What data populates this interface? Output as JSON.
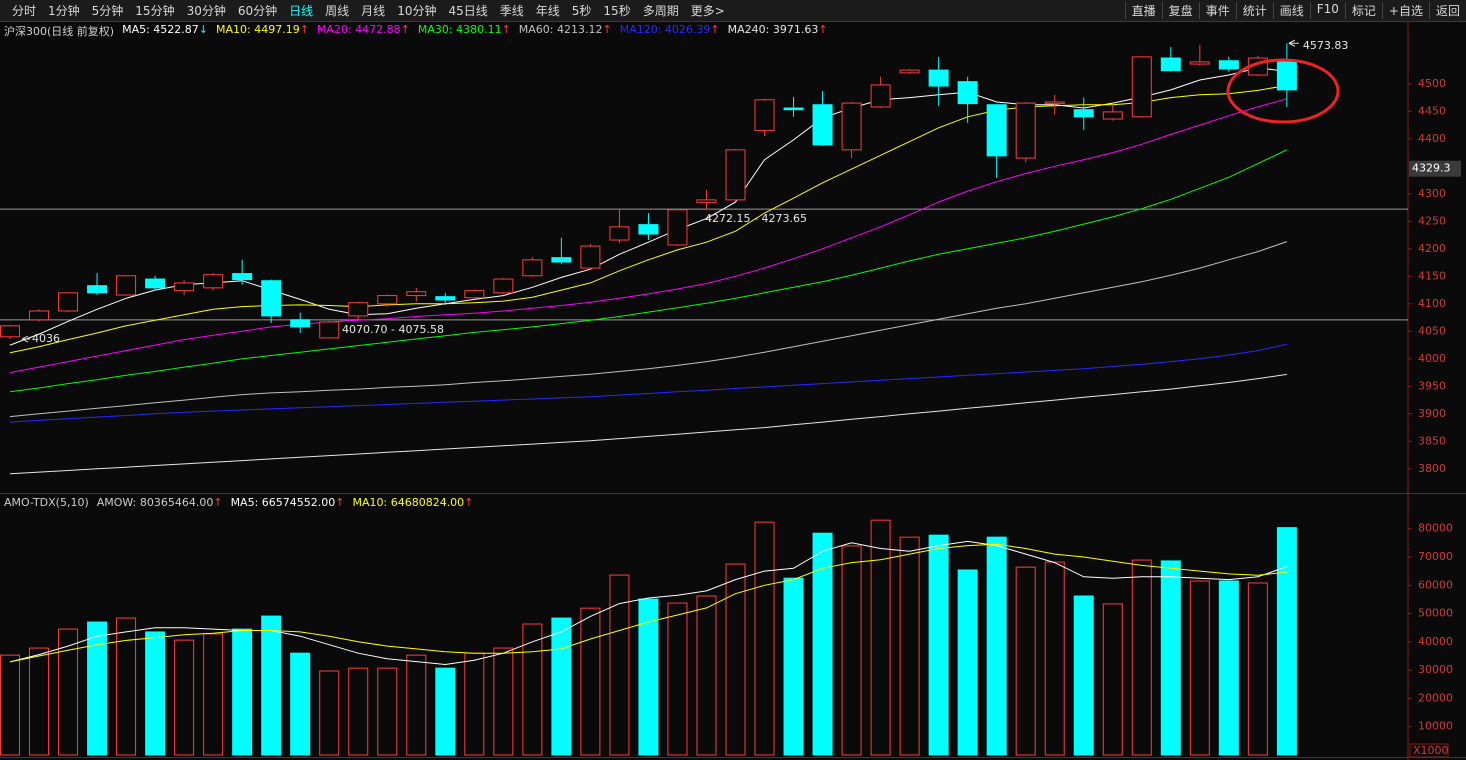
{
  "toolbar": {
    "left": [
      "分时",
      "1分钟",
      "5分钟",
      "15分钟",
      "30分钟",
      "60分钟",
      "日线",
      "周线",
      "月线",
      "10分钟",
      "45日线",
      "季线",
      "年线",
      "5秒",
      "15秒",
      "多周期",
      "更多>"
    ],
    "selected": "日线",
    "right": [
      "直播",
      "复盘",
      "事件",
      "统计",
      "画线",
      "F10",
      "标记",
      "+自选",
      "返回"
    ]
  },
  "chart_data": [
    {
      "type": "candlestick",
      "title": "沪深300(日线 前复权)",
      "up_color": "#ff3c3c",
      "down_color": "#00ffff",
      "open": [
        4040,
        4071,
        4087,
        4133,
        4116,
        4145,
        4124,
        4129,
        4155,
        4142,
        4071,
        4038,
        4078,
        4100,
        4115,
        4113,
        4111,
        4120,
        4151,
        4184,
        4165,
        4216,
        4244,
        4207,
        4284,
        4289,
        4415,
        4456,
        4462,
        4380,
        4458,
        4520,
        4525,
        4504,
        4462,
        4365,
        4464,
        4453,
        4436,
        4440,
        4547,
        4536,
        4542,
        4516,
        4540
      ],
      "high": [
        4062,
        4090,
        4121,
        4156,
        4152,
        4151,
        4143,
        4156,
        4180,
        4144,
        4084,
        4069,
        4104,
        4117,
        4129,
        4120,
        4126,
        4147,
        4185,
        4220,
        4209,
        4271,
        4265,
        4273,
        4307,
        4381,
        4473,
        4476,
        4487,
        4467,
        4513,
        4527,
        4549,
        4513,
        4463,
        4467,
        4480,
        4475,
        4462,
        4551,
        4567,
        4571,
        4549,
        4551,
        4573.83
      ],
      "low": [
        4036,
        4068,
        4085,
        4116,
        4115,
        4124,
        4116,
        4124,
        4135,
        4065,
        4047,
        4037.94,
        4071,
        4095,
        4104,
        4098,
        4109,
        4118,
        4149,
        4173,
        4162,
        4210,
        4216,
        4205,
        4271,
        4287,
        4405,
        4440,
        4387,
        4365,
        4456,
        4518,
        4460,
        4429,
        4329,
        4357,
        4444,
        4416,
        4433,
        4438,
        4522,
        4533,
        4522,
        4514,
        4458
      ],
      "close": [
        4060,
        4087,
        4120,
        4120,
        4151,
        4129,
        4138,
        4153,
        4144,
        4078,
        4058,
        4067,
        4102,
        4115,
        4122,
        4107,
        4124,
        4145,
        4180,
        4176,
        4205,
        4240,
        4227,
        4271,
        4289,
        4380,
        4471,
        4453,
        4389,
        4465,
        4498,
        4525,
        4496,
        4464,
        4369,
        4465,
        4467,
        4440,
        4449,
        4549,
        4524,
        4540,
        4527,
        4547,
        4489
      ],
      "series": [
        {
          "name": "MA5: 4522.87",
          "arrow": "↓",
          "color": "#ffffff",
          "values": [
            4025,
            4045,
            4068,
            4090,
            4110,
            4125,
            4135,
            4138,
            4142,
            4125,
            4108,
            4090,
            4080,
            4082,
            4092,
            4100,
            4108,
            4115,
            4130,
            4148,
            4163,
            4190,
            4212,
            4235,
            4255,
            4285,
            4362,
            4398,
            4438,
            4456,
            4471,
            4475,
            4480,
            4485,
            4467,
            4462,
            4462,
            4456,
            4465,
            4476,
            4489,
            4507,
            4516,
            4529,
            4522.87
          ]
        },
        {
          "name": "MA10: 4497.19",
          "arrow": "↑",
          "color": "#ffff00",
          "values": [
            4011,
            4022,
            4035,
            4047,
            4060,
            4070,
            4080,
            4090,
            4095,
            4097,
            4098,
            4097,
            4095,
            4098,
            4100,
            4100,
            4102,
            4105,
            4112,
            4125,
            4138,
            4160,
            4180,
            4198,
            4212,
            4232,
            4265,
            4292,
            4320,
            4345,
            4370,
            4395,
            4420,
            4440,
            4452,
            4458,
            4460,
            4462,
            4462,
            4466,
            4475,
            4480,
            4482,
            4488,
            4497.19
          ]
        },
        {
          "name": "MA20: 4472.88",
          "arrow": "↑",
          "color": "#ff00ff",
          "values": [
            3975,
            3985,
            3995,
            4005,
            4015,
            4025,
            4035,
            4043,
            4050,
            4058,
            4063,
            4067,
            4070,
            4073,
            4077,
            4080,
            4083,
            4087,
            4092,
            4097,
            4103,
            4110,
            4118,
            4127,
            4137,
            4150,
            4165,
            4182,
            4200,
            4220,
            4240,
            4262,
            4285,
            4305,
            4322,
            4337,
            4350,
            4362,
            4375,
            4390,
            4408,
            4425,
            4442,
            4458,
            4472.88
          ]
        },
        {
          "name": "MA30: 4380.11",
          "arrow": "↑",
          "color": "#00ff00",
          "values": [
            3940,
            3947,
            3955,
            3962,
            3970,
            3977,
            3985,
            3992,
            4000,
            4006,
            4012,
            4018,
            4024,
            4030,
            4036,
            4042,
            4048,
            4053,
            4058,
            4064,
            4070,
            4077,
            4085,
            4093,
            4101,
            4110,
            4120,
            4130,
            4140,
            4152,
            4165,
            4178,
            4190,
            4200,
            4210,
            4220,
            4232,
            4245,
            4258,
            4273,
            4290,
            4310,
            4330,
            4355,
            4380.11
          ]
        },
        {
          "name": "MA60: 4213.12",
          "arrow": "↑",
          "color": "#c0c0c0",
          "values": [
            3895,
            3900,
            3905,
            3910,
            3915,
            3920,
            3925,
            3930,
            3935,
            3938,
            3940,
            3943,
            3945,
            3948,
            3950,
            3953,
            3957,
            3960,
            3964,
            3968,
            3972,
            3977,
            3982,
            3988,
            3995,
            4003,
            4012,
            4022,
            4032,
            4042,
            4052,
            4062,
            4072,
            4082,
            4092,
            4100,
            4110,
            4120,
            4130,
            4140,
            4152,
            4165,
            4180,
            4195,
            4213.12
          ]
        },
        {
          "name": "MA120: 4026.39",
          "arrow": "↑",
          "color": "#2828ff",
          "values": [
            3885,
            3888,
            3891,
            3894,
            3897,
            3900,
            3903,
            3905,
            3907,
            3909,
            3911,
            3913,
            3915,
            3917,
            3919,
            3921,
            3923,
            3925,
            3927,
            3929,
            3931,
            3934,
            3937,
            3940,
            3943,
            3946,
            3949,
            3952,
            3955,
            3958,
            3961,
            3964,
            3967,
            3970,
            3973,
            3976,
            3979,
            3982,
            3986,
            3990,
            3995,
            4000,
            4007,
            4015,
            4026.39
          ]
        },
        {
          "name": "MA240: 3971.63",
          "arrow": "↑",
          "color": "#e6e6e6",
          "values": [
            3791,
            3794,
            3797,
            3800,
            3803,
            3806,
            3809,
            3812,
            3815,
            3818,
            3821,
            3824,
            3827,
            3830,
            3833,
            3836,
            3839,
            3842,
            3845,
            3848,
            3851,
            3855,
            3859,
            3863,
            3867,
            3871,
            3875,
            3880,
            3885,
            3890,
            3895,
            3900,
            3905,
            3910,
            3915,
            3920,
            3925,
            3930,
            3935,
            3940,
            3945,
            3951,
            3957,
            3964,
            3971.63
          ]
        }
      ],
      "ylim": [
        3756,
        4607
      ],
      "yticks": [
        3800,
        3850,
        3900,
        3950,
        4000,
        4050,
        4100,
        4150,
        4200,
        4250,
        4300,
        4400,
        4450,
        4500
      ],
      "price_lines": [
        {
          "value": 4272.15,
          "label": "4272.15 - 4273.65"
        },
        {
          "value": 4070.7,
          "label": "4070.70 - 4075.58"
        }
      ],
      "price_marker": 4329.3
    },
    {
      "type": "bar",
      "title": "AMO-TDX(5,10)",
      "name": "AMOW: 80365464.00",
      "arrow": "↑",
      "values": [
        35300,
        37800,
        44500,
        47000,
        48400,
        43500,
        40600,
        42800,
        44500,
        49100,
        36000,
        29700,
        30700,
        30700,
        35300,
        30700,
        36000,
        37800,
        46300,
        48400,
        51900,
        63600,
        55100,
        53700,
        56200,
        67500,
        82300,
        62500,
        78400,
        73900,
        83000,
        77000,
        77700,
        65400,
        77000,
        66400,
        68200,
        56200,
        53400,
        68900,
        68600,
        61500,
        61500,
        60800,
        80365.464
      ],
      "series": [
        {
          "name": "MA5: 66574552.00",
          "arrow": "↑",
          "color": "#ffffff",
          "values": [
            32900,
            35500,
            38500,
            42000,
            43500,
            45000,
            45000,
            44500,
            44000,
            44000,
            42000,
            39000,
            36000,
            34000,
            33000,
            32000,
            33500,
            36000,
            40000,
            43500,
            49000,
            53500,
            55500,
            56500,
            58000,
            62000,
            65000,
            66000,
            72000,
            75000,
            73000,
            72000,
            74000,
            75500,
            74000,
            71000,
            68000,
            63000,
            62500,
            63000,
            63000,
            62500,
            62000,
            63000,
            66574.552
          ]
        },
        {
          "name": "MA10: 64680824.00",
          "arrow": "↑",
          "color": "#ffff00",
          "values": [
            32900,
            35000,
            37000,
            39000,
            40500,
            41500,
            42500,
            43000,
            44000,
            44000,
            43500,
            42000,
            40000,
            38500,
            37500,
            36500,
            36000,
            36000,
            36500,
            37500,
            41000,
            44000,
            47000,
            49500,
            52000,
            57000,
            60000,
            62000,
            66000,
            68000,
            69000,
            71000,
            73000,
            74000,
            74500,
            73000,
            71000,
            70000,
            68500,
            67000,
            66000,
            65000,
            64000,
            63500,
            64680.824
          ]
        }
      ],
      "ylim": [
        0,
        91900
      ],
      "yticks": [
        10000,
        20000,
        30000,
        40000,
        50000,
        60000,
        70000,
        80000
      ],
      "unit_label": "X1000"
    }
  ]
}
